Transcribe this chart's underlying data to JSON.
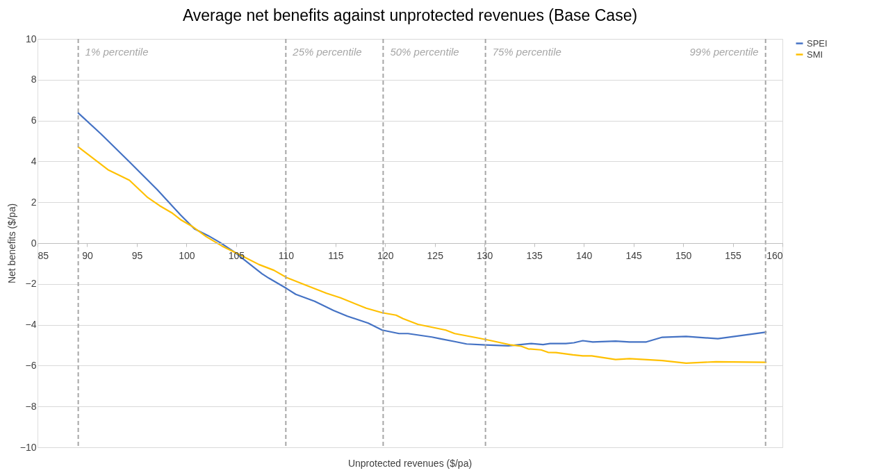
{
  "chart_data": {
    "type": "line",
    "title": "Average net benefits against unprotected revenues (Base Case)",
    "xlabel": "Unprotected revenues ($/pa)",
    "ylabel": "Net benefits ($/pa)",
    "xlim": [
      85,
      160
    ],
    "xticks": [
      85,
      90,
      95,
      100,
      105,
      110,
      115,
      120,
      125,
      130,
      135,
      140,
      145,
      150,
      155,
      160
    ],
    "ylim": [
      -10,
      10
    ],
    "yticks": [
      -10,
      -8,
      -6,
      -4,
      -2,
      0,
      2,
      4,
      6,
      8,
      10
    ],
    "grid": "y",
    "legend": "right",
    "marker": "none",
    "line_style": "solid",
    "series": [
      {
        "name": "SPEI",
        "color": "#4472c4",
        "x": [
          89.06,
          91.4,
          94.25,
          97.05,
          99.4,
          100.8,
          102.2,
          103.4,
          104.8,
          107.6,
          108.3,
          110.1,
          111.0,
          112.9,
          114.8,
          116.2,
          118.3,
          119.7,
          121.4,
          122.3,
          124.7,
          125.6,
          127.0,
          128.2,
          130.1,
          132.4,
          134.7,
          135.9,
          136.6,
          138.2,
          139.0,
          139.9,
          140.9,
          143.2,
          144.6,
          146.3,
          147.9,
          150.3,
          153.5,
          158.4
        ],
        "values": [
          6.39,
          5.34,
          3.98,
          2.62,
          1.38,
          0.7,
          0.36,
          0.02,
          -0.43,
          -1.5,
          -1.72,
          -2.23,
          -2.51,
          -2.85,
          -3.3,
          -3.58,
          -3.92,
          -4.26,
          -4.43,
          -4.43,
          -4.6,
          -4.69,
          -4.82,
          -4.94,
          -4.99,
          -5.03,
          -4.92,
          -4.97,
          -4.92,
          -4.92,
          -4.88,
          -4.78,
          -4.84,
          -4.8,
          -4.84,
          -4.84,
          -4.61,
          -4.57,
          -4.68,
          -4.36
        ]
      },
      {
        "name": "SMI",
        "color": "#ffc000",
        "x": [
          89.06,
          92.1,
          94.25,
          96.1,
          97.3,
          98.5,
          99.4,
          100.6,
          102.0,
          103.6,
          105.5,
          107.3,
          108.8,
          110.1,
          112.0,
          114.1,
          115.5,
          118.1,
          119.7,
          121.1,
          121.8,
          123.3,
          126.1,
          127.0,
          129.4,
          130.6,
          132.7,
          133.7,
          134.4,
          135.7,
          136.4,
          137.2,
          138.9,
          139.9,
          140.8,
          143.2,
          144.6,
          147.9,
          150.3,
          153.3,
          158.4
        ],
        "values": [
          4.72,
          3.59,
          3.08,
          2.23,
          1.83,
          1.49,
          1.15,
          0.81,
          0.31,
          -0.15,
          -0.6,
          -1.05,
          -1.33,
          -1.69,
          -2.06,
          -2.46,
          -2.68,
          -3.19,
          -3.41,
          -3.53,
          -3.7,
          -3.98,
          -4.26,
          -4.43,
          -4.65,
          -4.77,
          -4.99,
          -5.05,
          -5.18,
          -5.23,
          -5.35,
          -5.36,
          -5.47,
          -5.52,
          -5.52,
          -5.7,
          -5.66,
          -5.75,
          -5.88,
          -5.81,
          -5.84
        ]
      }
    ],
    "ref_lines": [
      {
        "axis": "x",
        "value": 89.1,
        "label": "1% percentile",
        "color": "#a6a6a6",
        "line_style": "dashed"
      },
      {
        "axis": "x",
        "value": 110.0,
        "label": "25% percentile",
        "color": "#a6a6a6",
        "line_style": "dashed"
      },
      {
        "axis": "x",
        "value": 119.8,
        "label": "50% percentile",
        "color": "#a6a6a6",
        "line_style": "dashed"
      },
      {
        "axis": "x",
        "value": 130.1,
        "label": "75% percentile",
        "color": "#a6a6a6",
        "line_style": "dashed"
      },
      {
        "axis": "x",
        "value": 158.3,
        "label": "99% percentile",
        "color": "#a6a6a6",
        "line_style": "dashed"
      }
    ]
  }
}
